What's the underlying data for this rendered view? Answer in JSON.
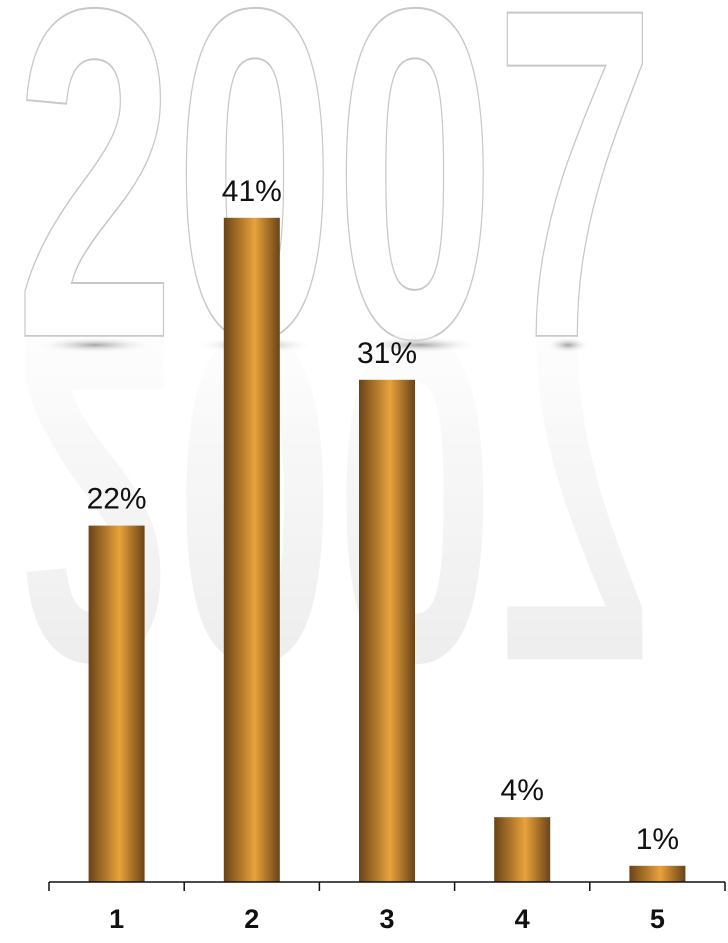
{
  "watermark": {
    "text": "2007"
  },
  "colors": {
    "bar_edge": "#6b4318",
    "bar_mid": "#e8a23c",
    "axis": "#111111",
    "watermark_stroke": "#c8c8c8"
  },
  "chart_data": {
    "type": "bar",
    "title": "",
    "xlabel": "",
    "ylabel": "",
    "categories": [
      "1",
      "2",
      "3",
      "4",
      "5"
    ],
    "values": [
      22,
      41,
      31,
      4,
      1
    ],
    "data_labels": [
      "22%",
      "41%",
      "31%",
      "4%",
      "1%"
    ],
    "ylim": [
      0,
      50
    ],
    "grid": false,
    "legend": "none"
  }
}
